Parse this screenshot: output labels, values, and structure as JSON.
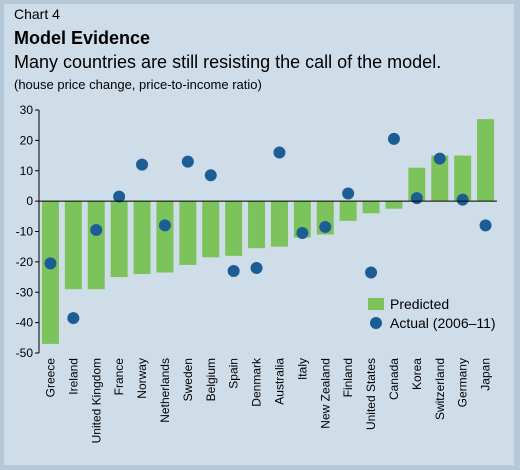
{
  "header": {
    "chart_label": "Chart 4",
    "title": "Model Evidence",
    "subtitle": "Many countries are still resisting the call of the model.",
    "note": "(house price change, price-to-income ratio)"
  },
  "colors": {
    "background": "#cfdde8",
    "border": "#b5c9d9",
    "bar": "#7dc35b",
    "dot": "#1d5d96"
  },
  "chart_data": {
    "type": "bar",
    "categories": [
      "Greece",
      "Ireland",
      "United Kingdom",
      "France",
      "Norway",
      "Netherlands",
      "Sweden",
      "Belgium",
      "Spain",
      "Denmark",
      "Australia",
      "Italy",
      "New Zealand",
      "Finland",
      "United States",
      "Canada",
      "Korea",
      "Switzerland",
      "Germany",
      "Japan"
    ],
    "series": [
      {
        "name": "Predicted",
        "type": "bar",
        "values": [
          -47,
          -29,
          -29,
          -25,
          -24,
          -23.5,
          -21,
          -18.5,
          -18,
          -15.5,
          -15,
          -12,
          -11,
          -6.5,
          -4,
          -2.5,
          11,
          15,
          15,
          27
        ]
      },
      {
        "name": "Actual (2006–11)",
        "type": "scatter",
        "values": [
          -20.5,
          -38.5,
          -9.5,
          1.5,
          12,
          -8,
          13,
          8.5,
          -23,
          -22,
          16,
          -10.5,
          -8.5,
          2.5,
          -23.5,
          20.5,
          1,
          14,
          0.5,
          -8
        ]
      }
    ],
    "yticks": [
      -50,
      -40,
      -30,
      -20,
      -10,
      0,
      10,
      20,
      30
    ],
    "ylim": [
      -50,
      30
    ],
    "grid": false,
    "legend_position": "bottom-right"
  }
}
